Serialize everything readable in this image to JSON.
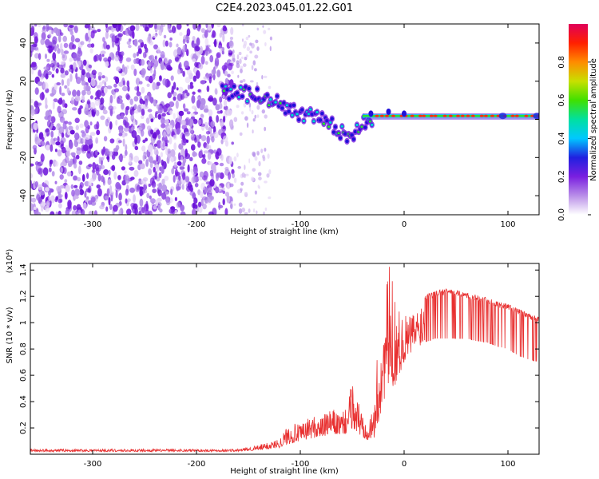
{
  "title": "C2E4.2023.045.01.22.G01",
  "chart_data": [
    {
      "type": "heatmap",
      "xlabel": "Height of straight line (km)",
      "ylabel": "Frequency (Hz)",
      "xlim": [
        -360,
        130
      ],
      "ylim": [
        -50,
        50
      ],
      "xticks": [
        -300,
        -200,
        -100,
        0,
        100
      ],
      "yticks": [
        -40,
        -20,
        0,
        20,
        40
      ],
      "colorbar": {
        "label": "Normalized spectral amplitude",
        "range": [
          0,
          1
        ],
        "ticks": [
          0.0,
          0.2,
          0.4,
          0.6,
          0.8
        ],
        "colormap": [
          "#ffffff",
          "#b98ee8",
          "#7a1fe0",
          "#2020e0",
          "#00c8ff",
          "#00e0a0",
          "#40e000",
          "#c8e000",
          "#ff8c00",
          "#ff2000",
          "#e0005a"
        ]
      },
      "noise_region": {
        "x": [
          -360,
          -165
        ],
        "y": [
          -50,
          50
        ]
      },
      "sparse_region": {
        "x": [
          -165,
          -128
        ],
        "y": [
          -50,
          50
        ]
      },
      "signal_trace": {
        "x": [
          -175,
          -160,
          -145,
          -130,
          -120,
          -110,
          -100,
          -90,
          -80,
          -70,
          -60,
          -52,
          -45,
          -38,
          -30,
          -20,
          -10,
          0,
          20,
          50,
          80,
          100,
          130
        ],
        "y": [
          14,
          14,
          13,
          11,
          8,
          5,
          3,
          2,
          0,
          -3,
          -7,
          -12,
          -3,
          -2,
          0,
          1,
          2,
          2,
          2,
          2,
          2,
          2,
          2
        ]
      }
    },
    {
      "type": "line",
      "xlabel": "Height of straight line (km)",
      "ylabel": "SNR (10 * v/v)",
      "yscale_label": "(x10⁴)",
      "xlim": [
        -360,
        130
      ],
      "ylim": [
        0,
        1.45
      ],
      "xticks": [
        -300,
        -200,
        -100,
        0,
        100
      ],
      "yticks": [
        0.2,
        0.4,
        0.6,
        0.8,
        1.0,
        1.2,
        1.4
      ],
      "color": "#e83030",
      "envelope": {
        "x": [
          -360,
          -300,
          -200,
          -160,
          -140,
          -120,
          -110,
          -100,
          -90,
          -80,
          -70,
          -60,
          -55,
          -50,
          -45,
          -40,
          -30,
          -25,
          -20,
          -15,
          -10,
          -5,
          0,
          10,
          20,
          30,
          40,
          50,
          60,
          70,
          80,
          90,
          100,
          110,
          120,
          130
        ],
        "base": [
          0.02,
          0.02,
          0.02,
          0.02,
          0.03,
          0.05,
          0.08,
          0.1,
          0.12,
          0.13,
          0.15,
          0.15,
          0.15,
          0.2,
          0.15,
          0.12,
          0.1,
          0.2,
          0.4,
          0.5,
          0.5,
          0.6,
          0.7,
          0.8,
          0.85,
          0.88,
          0.88,
          0.88,
          0.88,
          0.86,
          0.85,
          0.82,
          0.8,
          0.75,
          0.72,
          0.7
        ],
        "peak": [
          0.04,
          0.04,
          0.04,
          0.04,
          0.07,
          0.12,
          0.25,
          0.22,
          0.3,
          0.28,
          0.35,
          0.3,
          0.4,
          0.55,
          0.45,
          0.35,
          0.3,
          0.85,
          1.05,
          1.45,
          1.3,
          1.1,
          1.05,
          1.1,
          1.22,
          1.25,
          1.27,
          1.26,
          1.24,
          1.22,
          1.2,
          1.17,
          1.15,
          1.12,
          1.08,
          1.05
        ]
      }
    }
  ]
}
